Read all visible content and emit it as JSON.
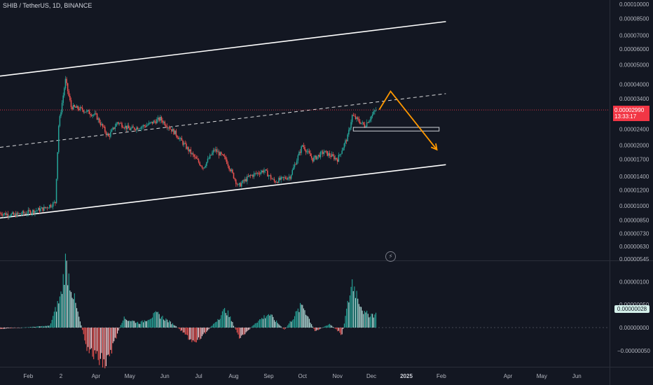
{
  "header": {
    "symbol": "SHIB / TetherUS, 1D, BINANCE"
  },
  "price_axis": {
    "labels": [
      "0.00010000",
      "0.00008500",
      "0.00007000",
      "0.00006000",
      "0.00005000",
      "0.00004000",
      "0.00003400",
      "0.00002400",
      "0.00002000",
      "0.00001700",
      "0.00001400",
      "0.00001200",
      "0.00001000",
      "0.00000850",
      "0.00000730",
      "0.00000630",
      "0.00000545"
    ],
    "current_price": "0.00002990",
    "countdown": "13:33:17"
  },
  "osc_axis": {
    "labels": [
      "0.00000100",
      "0.00000050",
      "0.00000000",
      "−0.00000050"
    ],
    "current_value": "0.00000028"
  },
  "time_axis": {
    "labels": [
      "Feb",
      "2",
      "Apr",
      "May",
      "Jun",
      "Jul",
      "Aug",
      "Sep",
      "Oct",
      "Nov",
      "Dec",
      "2025",
      "Feb",
      "Apr",
      "May",
      "Jun"
    ]
  },
  "colors": {
    "background": "#131722",
    "up": "#26a69a",
    "down": "#ef5350",
    "projection": "#ff9800",
    "channel": "#ffffff",
    "price_line": "#f23645"
  },
  "chart_data": {
    "type": "candlestick",
    "symbol": "SHIB / TetherUS",
    "interval": "1D",
    "exchange": "BINANCE",
    "y_scale": "log",
    "ylim": [
      5.45e-06,
      0.0001
    ],
    "x_range": [
      "2024-01-07",
      "2025-06-30"
    ],
    "series_path": [
      [
        "2024-01-07",
        9.2e-06
      ],
      [
        "2024-01-20",
        9e-06
      ],
      [
        "2024-02-01",
        9.3e-06
      ],
      [
        "2024-02-15",
        9.7e-06
      ],
      [
        "2024-02-25",
        1.04e-05
      ],
      [
        "2024-02-28",
        2.5e-05
      ],
      [
        "2024-03-05",
        4.2e-05
      ],
      [
        "2024-03-10",
        3.1e-05
      ],
      [
        "2024-03-20",
        3e-05
      ],
      [
        "2024-04-01",
        2.8e-05
      ],
      [
        "2024-04-12",
        2.2e-05
      ],
      [
        "2024-04-20",
        2.6e-05
      ],
      [
        "2024-05-01",
        2.4e-05
      ],
      [
        "2024-05-15",
        2.5e-05
      ],
      [
        "2024-05-28",
        2.7e-05
      ],
      [
        "2024-06-10",
        2.3e-05
      ],
      [
        "2024-06-25",
        1.8e-05
      ],
      [
        "2024-07-05",
        1.55e-05
      ],
      [
        "2024-07-15",
        1.9e-05
      ],
      [
        "2024-07-25",
        1.7e-05
      ],
      [
        "2024-08-05",
        1.25e-05
      ],
      [
        "2024-08-15",
        1.4e-05
      ],
      [
        "2024-08-28",
        1.5e-05
      ],
      [
        "2024-09-06",
        1.32e-05
      ],
      [
        "2024-09-20",
        1.4e-05
      ],
      [
        "2024-10-01",
        2e-05
      ],
      [
        "2024-10-10",
        1.7e-05
      ],
      [
        "2024-10-20",
        1.85e-05
      ],
      [
        "2024-11-01",
        1.7e-05
      ],
      [
        "2024-11-10",
        2.2e-05
      ],
      [
        "2024-11-14",
        2.8e-05
      ],
      [
        "2024-11-25",
        2.5e-05
      ],
      [
        "2024-12-05",
        2.99e-05
      ]
    ],
    "current_price": 2.99e-05,
    "annotations": {
      "channel_upper": [
        [
          "2024-01-07",
          4.4e-05
        ],
        [
          "2025-02-05",
          8.2e-05
        ]
      ],
      "channel_mid": [
        [
          "2024-01-07",
          1.95e-05
        ],
        [
          "2025-02-05",
          3.6e-05
        ]
      ],
      "channel_lower": [
        [
          "2024-01-07",
          8.7e-06
        ],
        [
          "2025-02-05",
          1.6e-05
        ]
      ],
      "support_zone": {
        "from": "2024-11-15",
        "to": "2025-01-30",
        "low": 2.35e-05,
        "high": 2.45e-05
      },
      "projection": [
        [
          "2024-12-08",
          3e-05
        ],
        [
          "2024-12-18",
          3.7e-05
        ],
        [
          "2025-01-28",
          1.9e-05
        ]
      ]
    },
    "oscillator": {
      "ylim": [
        -7e-07,
        1.4e-06
      ],
      "points": [
        [
          "2024-01-07",
          -3e-08
        ],
        [
          "2024-02-20",
          4e-08
        ],
        [
          "2024-03-01",
          7e-07
        ],
        [
          "2024-03-05",
          1.4e-06
        ],
        [
          "2024-03-15",
          4e-07
        ],
        [
          "2024-03-25",
          -5e-07
        ],
        [
          "2024-04-10",
          -8e-07
        ],
        [
          "2024-04-25",
          2e-07
        ],
        [
          "2024-05-10",
          1e-07
        ],
        [
          "2024-05-25",
          3e-07
        ],
        [
          "2024-06-10",
          5e-08
        ],
        [
          "2024-06-28",
          -3.5e-07
        ],
        [
          "2024-07-15",
          1e-07
        ],
        [
          "2024-07-25",
          4e-07
        ],
        [
          "2024-08-07",
          -2.5e-07
        ],
        [
          "2024-08-20",
          1e-07
        ],
        [
          "2024-09-01",
          3e-07
        ],
        [
          "2024-09-15",
          -5e-08
        ],
        [
          "2024-10-01",
          5e-07
        ],
        [
          "2024-10-12",
          -8e-08
        ],
        [
          "2024-10-25",
          8e-08
        ],
        [
          "2024-11-05",
          -1.5e-07
        ],
        [
          "2024-11-14",
          1e-06
        ],
        [
          "2024-11-25",
          3e-07
        ],
        [
          "2024-12-05",
          2.8e-07
        ]
      ]
    }
  }
}
